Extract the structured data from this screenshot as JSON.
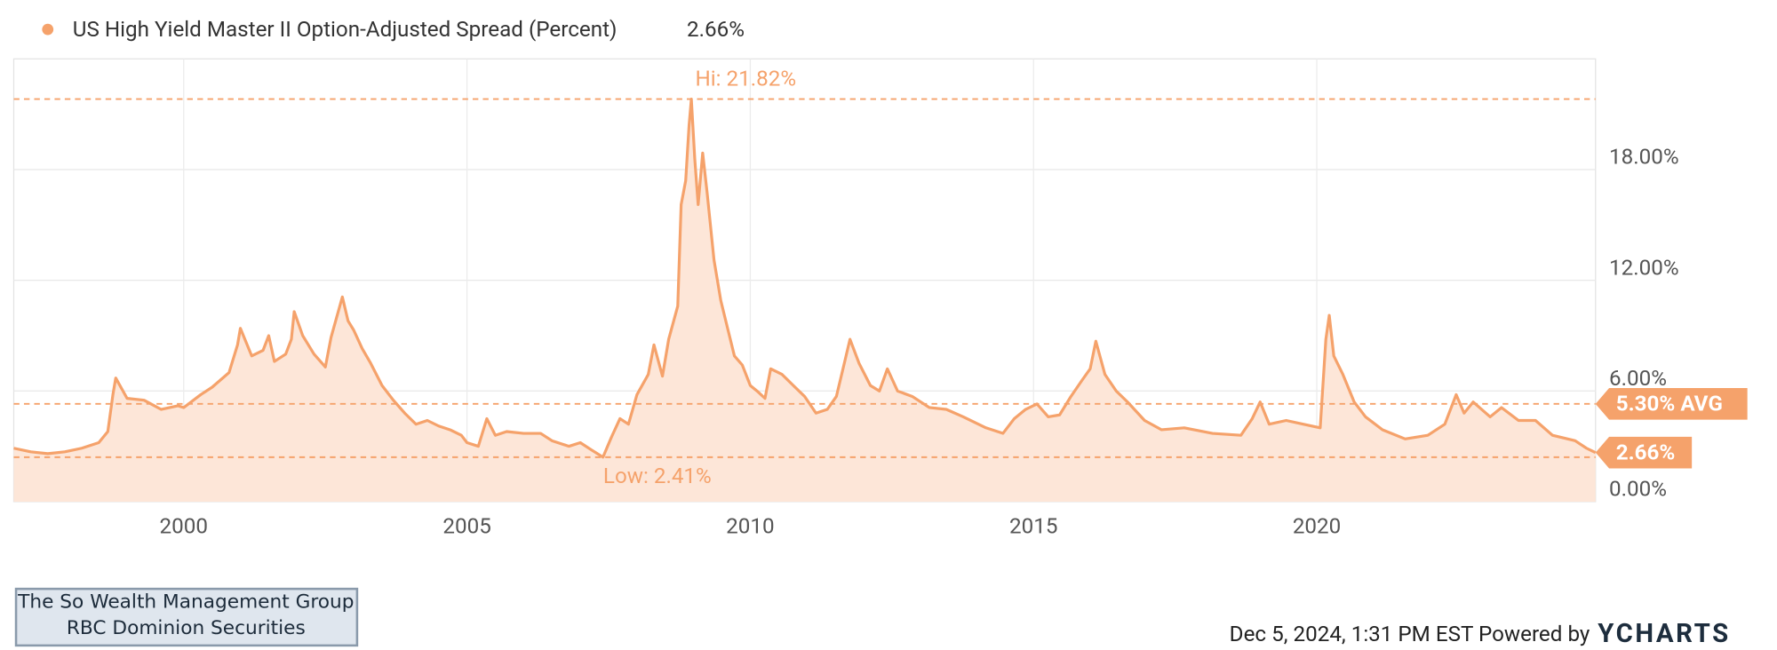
{
  "chart_data": {
    "type": "line",
    "x": [
      1997.0,
      1997.3,
      1997.6,
      1997.9,
      1998.2,
      1998.5,
      1998.66,
      1998.75,
      1998.8,
      1999.0,
      1999.3,
      1999.6,
      1999.9,
      2000.0,
      2000.3,
      2000.5,
      2000.8,
      2000.95,
      2001.0,
      2001.2,
      2001.4,
      2001.5,
      2001.6,
      2001.8,
      2001.9,
      2001.95,
      2002.1,
      2002.3,
      2002.5,
      2002.6,
      2002.7,
      2002.8,
      2002.9,
      2003.0,
      2003.15,
      2003.3,
      2003.5,
      2003.7,
      2003.9,
      2004.1,
      2004.3,
      2004.5,
      2004.7,
      2004.9,
      2005.0,
      2005.2,
      2005.35,
      2005.5,
      2005.7,
      2006.0,
      2006.3,
      2006.5,
      2006.8,
      2007.0,
      2007.2,
      2007.4,
      2007.55,
      2007.7,
      2007.85,
      2008.0,
      2008.2,
      2008.3,
      2008.45,
      2008.56,
      2008.72,
      2008.78,
      2008.86,
      2008.92,
      2008.96,
      2009.02,
      2009.08,
      2009.16,
      2009.24,
      2009.36,
      2009.48,
      2009.6,
      2009.72,
      2009.86,
      2010.0,
      2010.12,
      2010.26,
      2010.36,
      2010.56,
      2010.76,
      2010.96,
      2011.16,
      2011.36,
      2011.52,
      2011.66,
      2011.76,
      2011.92,
      2012.12,
      2012.28,
      2012.42,
      2012.6,
      2012.86,
      2013.16,
      2013.46,
      2013.76,
      2014.16,
      2014.46,
      2014.66,
      2014.86,
      2015.06,
      2015.26,
      2015.46,
      2015.66,
      2015.86,
      2016.0,
      2016.1,
      2016.26,
      2016.46,
      2016.66,
      2016.96,
      2017.26,
      2017.66,
      2018.16,
      2018.66,
      2018.86,
      2019.0,
      2019.16,
      2019.46,
      2019.76,
      2020.06,
      2020.16,
      2020.22,
      2020.3,
      2020.46,
      2020.66,
      2020.86,
      2021.16,
      2021.56,
      2021.96,
      2022.26,
      2022.46,
      2022.6,
      2022.76,
      2023.06,
      2023.26,
      2023.56,
      2023.86,
      2024.16,
      2024.56,
      2024.76,
      2024.92
    ],
    "series": [
      {
        "name": "US High Yield Master II Option-Adjusted Spread (Percent)",
        "color": "#f5a26b",
        "values": [
          2.9,
          2.7,
          2.6,
          2.7,
          2.9,
          3.2,
          3.8,
          5.8,
          6.7,
          5.6,
          5.5,
          5.0,
          5.2,
          5.1,
          5.8,
          6.2,
          7.0,
          8.5,
          9.4,
          7.9,
          8.2,
          9.0,
          7.6,
          8.0,
          8.8,
          10.3,
          9.0,
          8.0,
          7.3,
          8.9,
          10.0,
          11.1,
          9.8,
          9.3,
          8.3,
          7.5,
          6.3,
          5.5,
          4.8,
          4.2,
          4.4,
          4.1,
          3.9,
          3.6,
          3.2,
          3.0,
          4.5,
          3.6,
          3.8,
          3.7,
          3.7,
          3.3,
          3.0,
          3.2,
          2.8,
          2.41,
          3.5,
          4.5,
          4.2,
          5.8,
          6.9,
          8.5,
          6.8,
          8.8,
          10.6,
          16.1,
          17.4,
          20.4,
          21.82,
          18.6,
          16.1,
          18.9,
          16.7,
          13.1,
          10.9,
          9.4,
          7.9,
          7.4,
          6.3,
          6.0,
          5.6,
          7.2,
          6.9,
          6.3,
          5.7,
          4.8,
          5.0,
          5.7,
          7.5,
          8.8,
          7.5,
          6.3,
          6.0,
          7.2,
          6.0,
          5.7,
          5.1,
          5.0,
          4.6,
          4.0,
          3.7,
          4.5,
          5.0,
          5.3,
          4.6,
          4.7,
          5.7,
          6.6,
          7.2,
          8.7,
          6.9,
          6.0,
          5.4,
          4.4,
          3.9,
          4.0,
          3.7,
          3.6,
          4.5,
          5.4,
          4.2,
          4.4,
          4.2,
          4.0,
          8.8,
          10.1,
          7.9,
          6.9,
          5.4,
          4.6,
          3.9,
          3.4,
          3.6,
          4.2,
          5.8,
          4.8,
          5.4,
          4.6,
          5.1,
          4.4,
          4.4,
          3.6,
          3.3,
          2.9,
          2.66
        ]
      }
    ],
    "fill_color": "#fde6d8",
    "xlim": [
      1997.0,
      2024.92
    ],
    "xticks": [
      2000,
      2005,
      2010,
      2015,
      2020
    ],
    "ylim": [
      0,
      24
    ],
    "yticks": [
      {
        "value": 0,
        "label": "0.00%"
      },
      {
        "value": 6,
        "label": "6.00%"
      },
      {
        "value": 12,
        "label": "12.00%"
      },
      {
        "value": 18,
        "label": "18.00%"
      }
    ],
    "grid": true,
    "hi": {
      "value": 21.82,
      "label": "Hi: 21.82%"
    },
    "low": {
      "value": 2.41,
      "label": "Low: 2.41%"
    },
    "avg": {
      "value": 5.3,
      "label": "5.30% AVG"
    },
    "last": {
      "value": 2.66,
      "label": "2.66%"
    }
  },
  "watermark": {
    "line1": "The So Wealth Management Group",
    "line2": "RBC Dominion Securities"
  },
  "footer": {
    "timestamp": "Dec 5, 2024, 1:31 PM EST Powered by",
    "brand": "YCHARTS"
  }
}
